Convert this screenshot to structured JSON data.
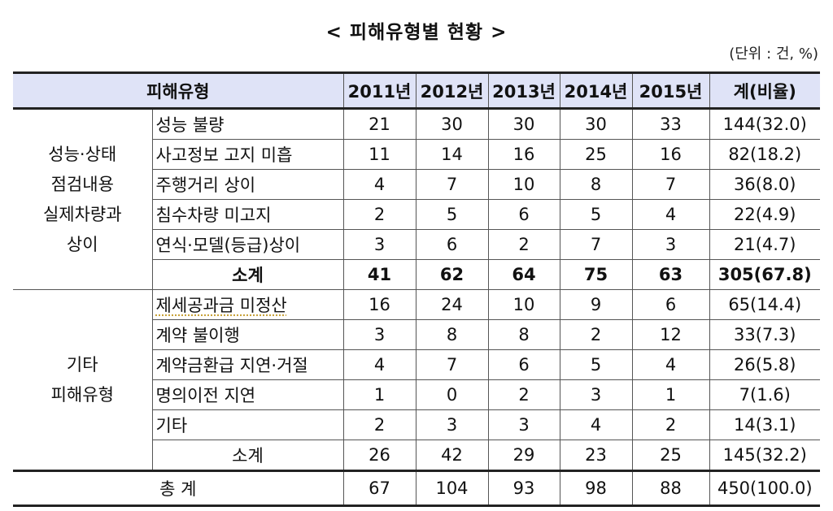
{
  "title": "< 피해유형별 현황 >",
  "unit_note": "(단위 : 건, %)",
  "header": {
    "category": "피해유형",
    "years": [
      "2011년",
      "2012년",
      "2013년",
      "2014년",
      "2015년"
    ],
    "total": "계(비율)"
  },
  "groups": [
    {
      "label": "성능·상태\n점검내용\n실제차량과\n상이",
      "label_lines": [
        "성능·상태",
        "점검내용",
        "실제차량과",
        "상이"
      ],
      "rows": [
        {
          "item": "성능 불량",
          "values": [
            "21",
            "30",
            "30",
            "30",
            "33"
          ],
          "total": "144(32.0)"
        },
        {
          "item": "사고정보 고지 미흡",
          "values": [
            "11",
            "14",
            "16",
            "25",
            "16"
          ],
          "total": "82(18.2)"
        },
        {
          "item": "주행거리 상이",
          "values": [
            "4",
            "7",
            "10",
            "8",
            "7"
          ],
          "total": "36(8.0)"
        },
        {
          "item": "침수차량 미고지",
          "values": [
            "2",
            "5",
            "6",
            "5",
            "4"
          ],
          "total": "22(4.9)"
        },
        {
          "item": "연식·모델(등급)상이",
          "values": [
            "3",
            "6",
            "2",
            "7",
            "3"
          ],
          "total": "21(4.7)"
        }
      ],
      "subtotal": {
        "label": "소계",
        "values": [
          "41",
          "62",
          "64",
          "75",
          "63"
        ],
        "total": "305(67.8)"
      }
    },
    {
      "label": "기타\n피해유형",
      "label_lines": [
        "기타",
        "피해유형"
      ],
      "rows": [
        {
          "item": "제세공과금 미정산",
          "values": [
            "16",
            "24",
            "10",
            "9",
            "6"
          ],
          "total": "65(14.4)"
        },
        {
          "item": "계약 불이행",
          "values": [
            "3",
            "8",
            "8",
            "2",
            "12"
          ],
          "total": "33(7.3)"
        },
        {
          "item": "계약금환급 지연·거절",
          "values": [
            "4",
            "7",
            "6",
            "5",
            "4"
          ],
          "total": "26(5.8)"
        },
        {
          "item": "명의이전 지연",
          "values": [
            "1",
            "0",
            "2",
            "3",
            "1"
          ],
          "total": "7(1.6)"
        },
        {
          "item": "기타",
          "values": [
            "2",
            "3",
            "3",
            "4",
            "2"
          ],
          "total": "14(3.1)"
        }
      ],
      "subtotal": {
        "label": "소계",
        "values": [
          "26",
          "42",
          "29",
          "23",
          "25"
        ],
        "total": "145(32.2)"
      }
    }
  ],
  "grand_total": {
    "label": "총 계",
    "values": [
      "67",
      "104",
      "93",
      "98",
      "88"
    ],
    "total": "450(100.0)"
  },
  "colors": {
    "header_bg": "#dfe3f7",
    "border": "#555555",
    "thick_border": "#222222"
  }
}
